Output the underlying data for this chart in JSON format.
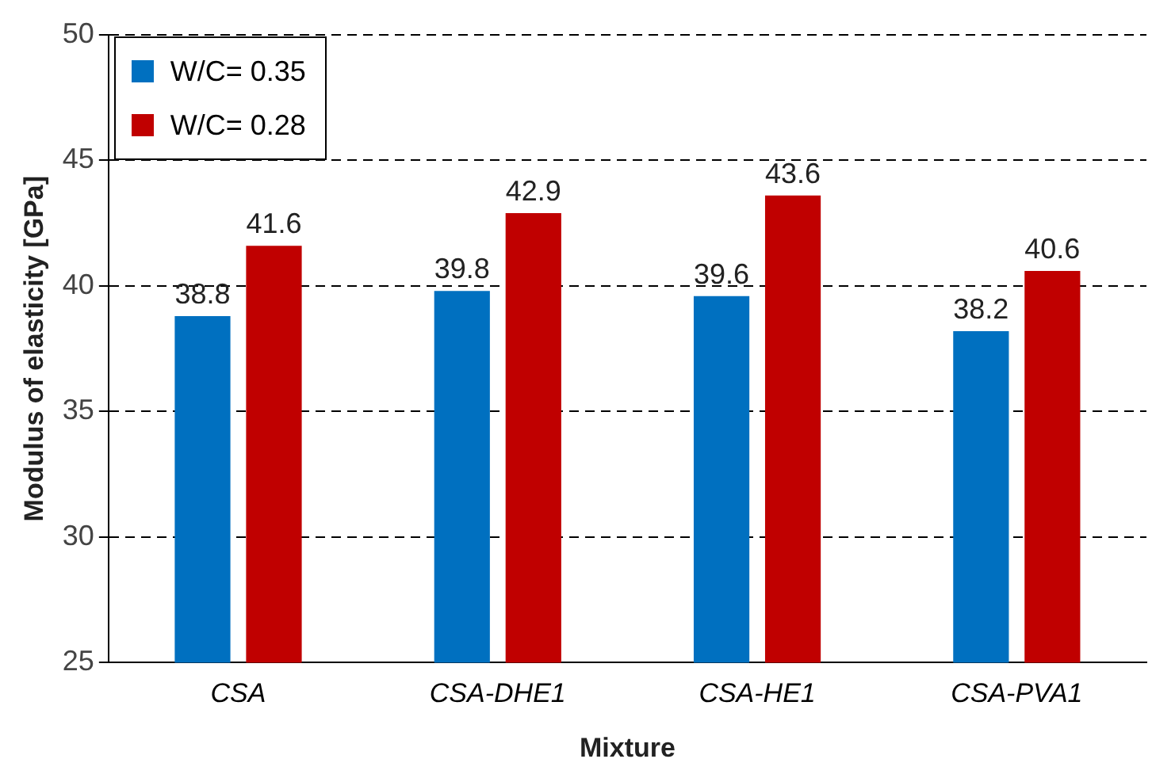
{
  "chart_data": {
    "type": "bar",
    "xlabel": "Mixture",
    "ylabel": "Modulus of elasticity [GPa]",
    "categories": [
      "CSA",
      "CSA-DHE1",
      "CSA-HE1",
      "CSA-PVA1"
    ],
    "series": [
      {
        "name": "W/C= 0.35",
        "color": "#0070c0",
        "values": [
          38.8,
          39.8,
          39.6,
          38.2
        ]
      },
      {
        "name": "W/C= 0.28",
        "color": "#c00000",
        "values": [
          41.6,
          42.9,
          43.6,
          40.6
        ]
      }
    ],
    "ylim": [
      25,
      50
    ],
    "yticks": [
      25,
      30,
      35,
      40,
      45,
      50
    ],
    "grid": "y",
    "line_style": "dashed",
    "legend": "top left",
    "data_labels": true
  }
}
